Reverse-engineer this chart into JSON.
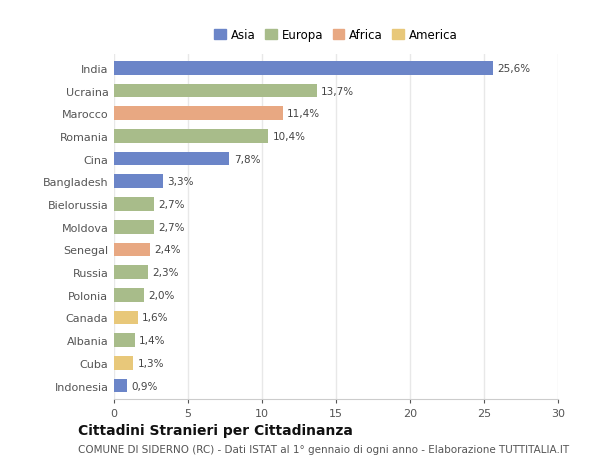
{
  "categories": [
    "India",
    "Ucraina",
    "Marocco",
    "Romania",
    "Cina",
    "Bangladesh",
    "Bielorussia",
    "Moldova",
    "Senegal",
    "Russia",
    "Polonia",
    "Canada",
    "Albania",
    "Cuba",
    "Indonesia"
  ],
  "values": [
    25.6,
    13.7,
    11.4,
    10.4,
    7.8,
    3.3,
    2.7,
    2.7,
    2.4,
    2.3,
    2.0,
    1.6,
    1.4,
    1.3,
    0.9
  ],
  "labels": [
    "25,6%",
    "13,7%",
    "11,4%",
    "10,4%",
    "7,8%",
    "3,3%",
    "2,7%",
    "2,7%",
    "2,4%",
    "2,3%",
    "2,0%",
    "1,6%",
    "1,4%",
    "1,3%",
    "0,9%"
  ],
  "continents": [
    "Asia",
    "Europa",
    "Africa",
    "Europa",
    "Asia",
    "Asia",
    "Europa",
    "Europa",
    "Africa",
    "Europa",
    "Europa",
    "America",
    "Europa",
    "America",
    "Asia"
  ],
  "continent_colors": {
    "Asia": "#6b85c8",
    "Europa": "#a8bc8a",
    "Africa": "#e8a882",
    "America": "#e8c87a"
  },
  "legend_items": [
    "Asia",
    "Europa",
    "Africa",
    "America"
  ],
  "legend_colors": [
    "#6b85c8",
    "#a8bc8a",
    "#e8a882",
    "#e8c87a"
  ],
  "xlim": [
    0,
    30
  ],
  "xticks": [
    0,
    5,
    10,
    15,
    20,
    25,
    30
  ],
  "title": "Cittadini Stranieri per Cittadinanza",
  "subtitle": "COMUNE DI SIDERNO (RC) - Dati ISTAT al 1° gennaio di ogni anno - Elaborazione TUTTITALIA.IT",
  "background_color": "#ffffff",
  "plot_bg_color": "#ffffff",
  "grid_color": "#e8e8e8",
  "title_fontsize": 10,
  "subtitle_fontsize": 7.5,
  "bar_height": 0.6,
  "label_fontsize": 7.5,
  "ytick_fontsize": 8,
  "xtick_fontsize": 8
}
